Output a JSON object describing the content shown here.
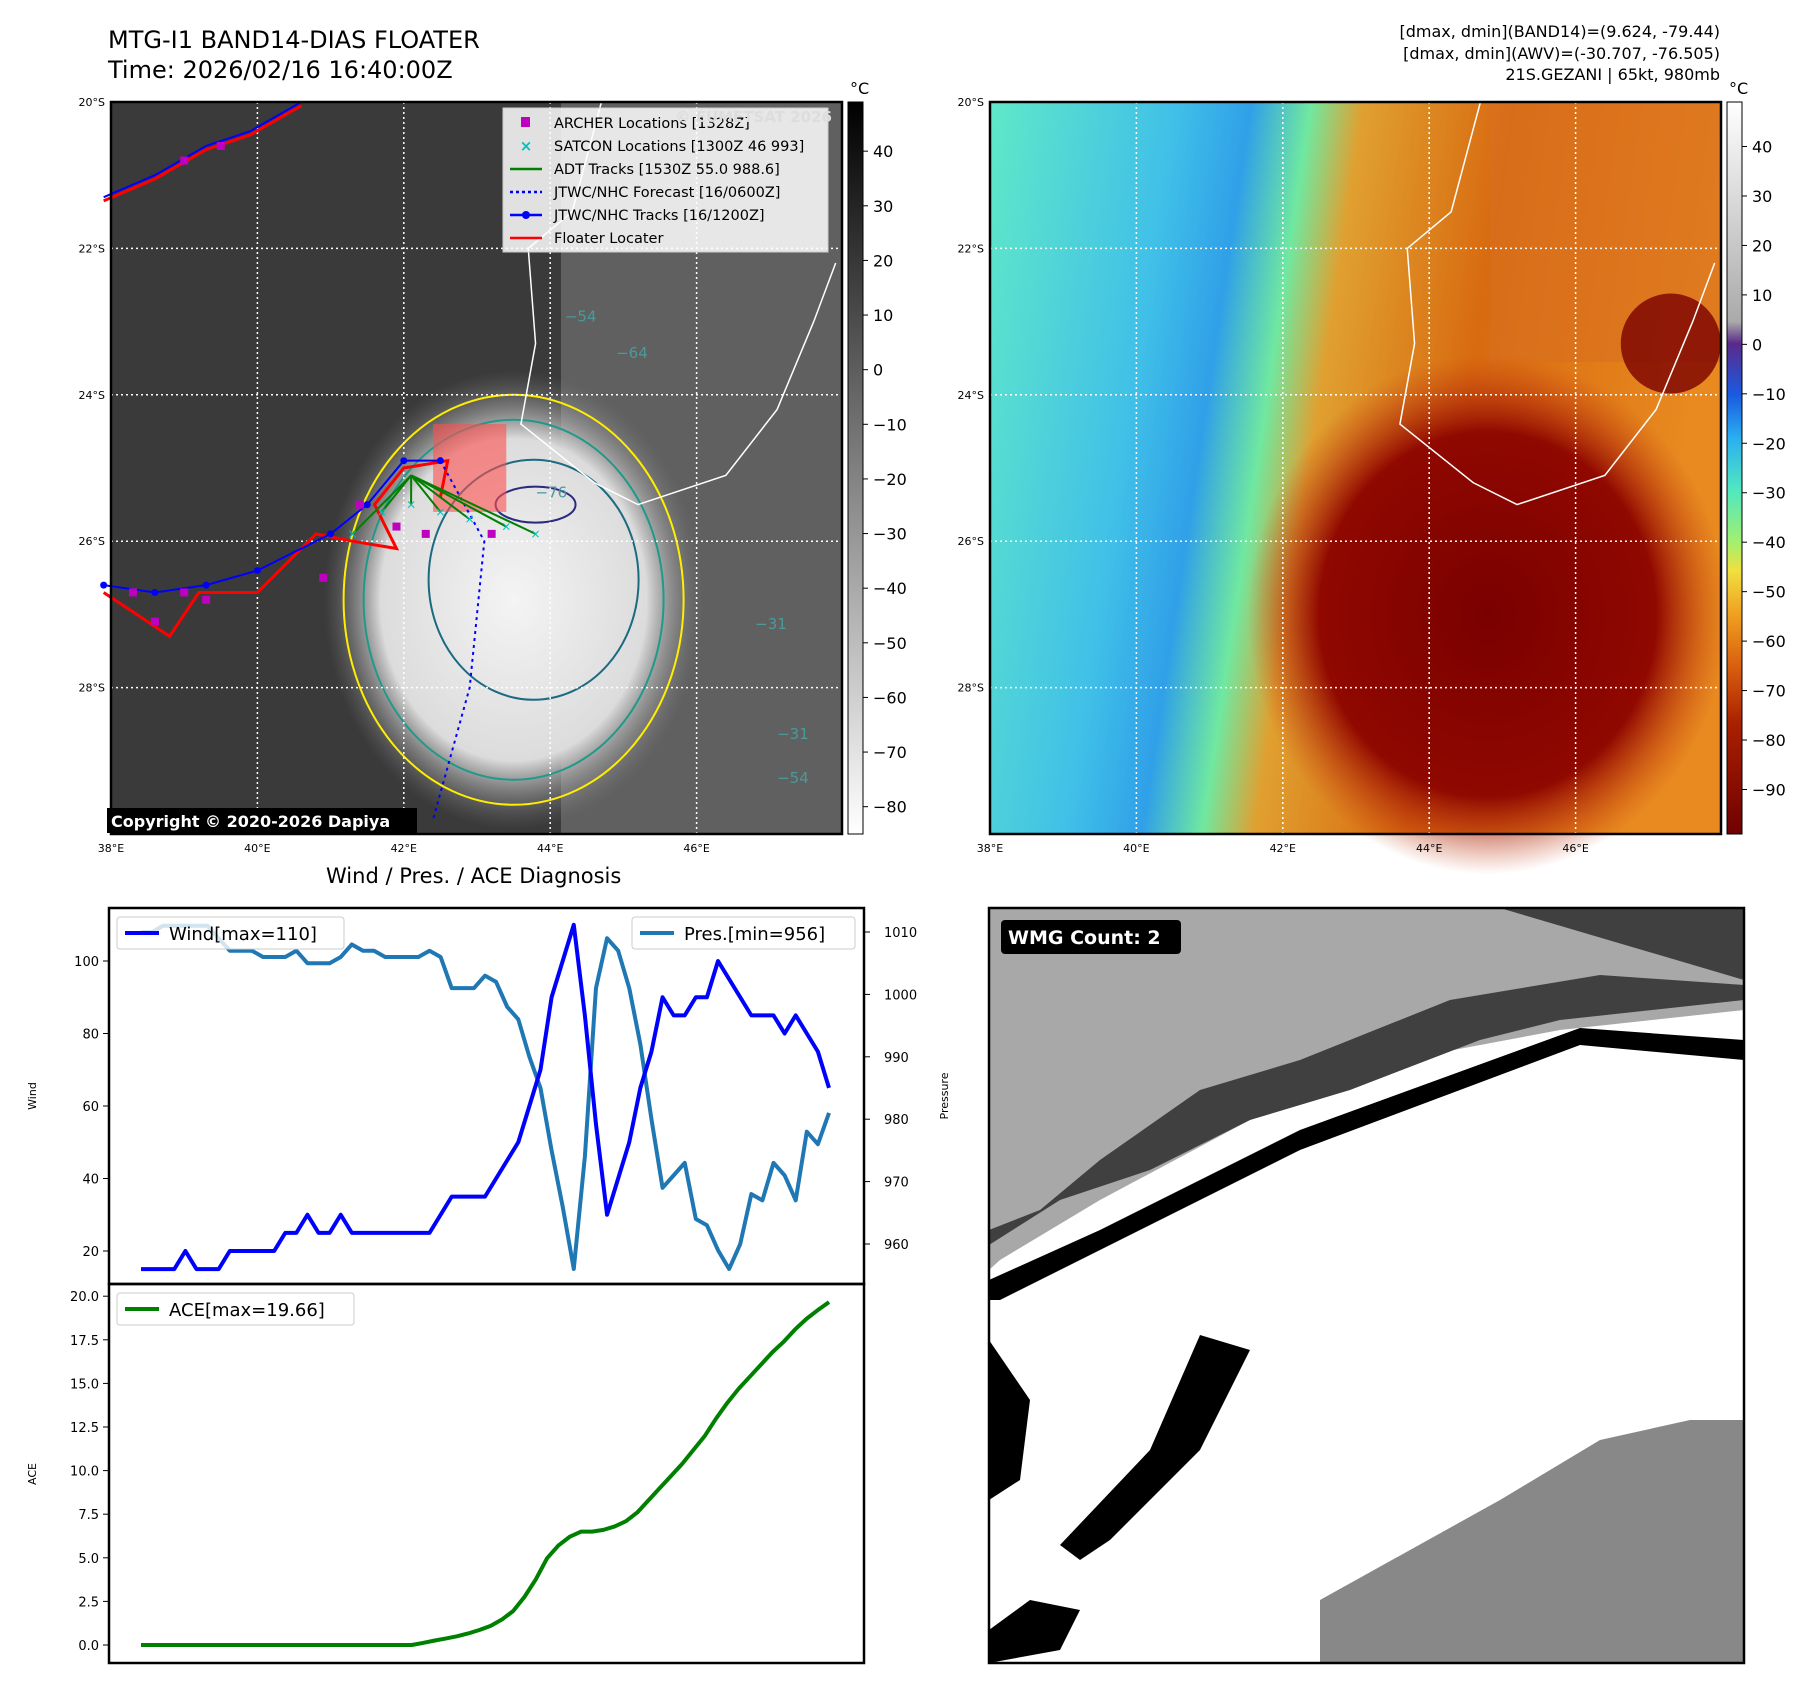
{
  "header": {
    "title": "MTG-I1 BAND14-DIAS FLOATER",
    "time": "Time: 2026/02/16 16:40:00Z",
    "info1": "[dmax, dmin](BAND14)=(9.624, -79.44)",
    "info2": "[dmax, dmin](AWV)=(-30.707, -76.505)",
    "info3": "21S.GEZANI | 65kt, 980mb"
  },
  "maps": {
    "lat_ticks": [
      "20°S",
      "22°S",
      "24°S",
      "26°S",
      "28°S"
    ],
    "lat_values": [
      -20,
      -22,
      -24,
      -26,
      -28
    ],
    "lon_ticks": [
      "38°E",
      "40°E",
      "42°E",
      "44°E",
      "46°E"
    ],
    "lon_values": [
      38,
      40,
      42,
      44,
      46
    ],
    "unit": "°C",
    "copyright": "Copyright © 2020-2026 Dapiya",
    "watermark": "© EUMETSAT 2026",
    "left_cbar": {
      "ticks": [
        "40",
        "30",
        "20",
        "10",
        "0",
        "−10",
        "−20",
        "−30",
        "−40",
        "−50",
        "−60",
        "−70",
        "−80"
      ],
      "values": [
        40,
        30,
        20,
        10,
        0,
        -10,
        -20,
        -30,
        -40,
        -50,
        -60,
        -70,
        -80
      ],
      "range": [
        49,
        -85
      ]
    },
    "right_cbar": {
      "ticks": [
        "40",
        "30",
        "20",
        "10",
        "0",
        "−10",
        "−20",
        "−30",
        "−40",
        "−50",
        "−60",
        "−70",
        "−80",
        "−90"
      ],
      "values": [
        40,
        30,
        20,
        10,
        0,
        -10,
        -20,
        -30,
        -40,
        -50,
        -60,
        -70,
        -80,
        -90
      ],
      "range": [
        49,
        -99
      ]
    },
    "contour_labels": [
      "−54",
      "−76",
      "−31",
      "−64",
      "−31",
      "−54"
    ],
    "legend": [
      "ARCHER Locations [1328Z]",
      "SATCON Locations [1300Z 46 993]",
      "ADT Tracks [1530Z 55.0 988.6]",
      "JTWC/NHC Forecast [16/0600Z]",
      "JTWC/NHC Tracks [16/1200Z]",
      "Floater Locater"
    ],
    "colors": {
      "archer": "#c000c0",
      "satcon": "#00c0c0",
      "adt": "#008000",
      "forecast": "#0000ff",
      "jtwc": "#0000ff",
      "floater": "#ff0000"
    },
    "jtwc_track": [
      [
        37.9,
        -21.3
      ],
      [
        38.6,
        -21
      ],
      [
        39.3,
        -20.6
      ],
      [
        39.9,
        -20.4
      ],
      [
        40.6,
        -20
      ]
    ],
    "jtwc_track2": [
      [
        37.9,
        -26.6
      ],
      [
        38.6,
        -26.7
      ],
      [
        39.3,
        -26.6
      ],
      [
        40,
        -26.4
      ],
      [
        41,
        -25.9
      ],
      [
        41.5,
        -25.5
      ],
      [
        42,
        -24.9
      ],
      [
        42.5,
        -24.9
      ]
    ],
    "floater_track2": [
      [
        37.9,
        -26.7
      ],
      [
        38.8,
        -27.3
      ],
      [
        39.2,
        -26.7
      ],
      [
        40,
        -26.7
      ],
      [
        40.8,
        -25.9
      ],
      [
        41.3,
        -26
      ],
      [
        41.9,
        -26.1
      ],
      [
        41.6,
        -25.5
      ],
      [
        42,
        -25
      ],
      [
        42.6,
        -24.9
      ],
      [
        42.5,
        -25.4
      ]
    ],
    "forecast_track": [
      [
        42.5,
        -24.9
      ],
      [
        43.1,
        -26
      ],
      [
        42.9,
        -28
      ],
      [
        42.4,
        -29.8
      ]
    ],
    "adt_points": [
      [
        41.3,
        -25.9
      ],
      [
        41.7,
        -25.6
      ],
      [
        42.1,
        -25.5
      ],
      [
        42.5,
        -25.6
      ],
      [
        42.9,
        -25.7
      ],
      [
        43.4,
        -25.8
      ],
      [
        43.8,
        -25.9
      ]
    ],
    "archer_points": [
      [
        38.3,
        -26.7
      ],
      [
        38.6,
        -27.1
      ],
      [
        39,
        -26.7
      ],
      [
        39.3,
        -26.8
      ],
      [
        40.9,
        -26.5
      ],
      [
        41.4,
        -25.5
      ],
      [
        41.9,
        -25.8
      ],
      [
        42.3,
        -25.9
      ],
      [
        43.2,
        -25.9
      ],
      [
        39,
        -20.8
      ],
      [
        39.5,
        -20.6
      ]
    ],
    "storm_center": [
      43.5,
      -26.8
    ]
  },
  "timeseries": {
    "title": "Wind / Pres. / ACE Diagnosis",
    "wind_label": "Wind",
    "pres_label": "Pressure",
    "ace_label": "ACE",
    "wind_legend": "Wind[max=110]",
    "pres_legend": "Pres.[min=956]",
    "ace_legend": "ACE[max=19.66]",
    "wind_ticks": [
      20,
      40,
      60,
      80,
      100
    ],
    "pres_ticks": [
      960,
      970,
      980,
      990,
      1000,
      1010
    ],
    "ace_ticks": [
      "0.0",
      "2.5",
      "5.0",
      "7.5",
      "10.0",
      "12.5",
      "15.0",
      "17.5",
      "20.0"
    ],
    "colors": {
      "wind": "#0000ff",
      "pres": "#1f77b4",
      "ace": "#008000"
    }
  },
  "chart_data": [
    {
      "type": "line",
      "title": "Wind / Pres. / ACE Diagnosis",
      "ylabel": "Wind",
      "y2label": "Pressure",
      "ylim": [
        10,
        113
      ],
      "y2lim": [
        953,
        1013
      ],
      "series": [
        {
          "name": "Wind[max=110]",
          "values": [
            15,
            15,
            15,
            15,
            20,
            15,
            15,
            15,
            20,
            20,
            20,
            20,
            20,
            25,
            25,
            30,
            25,
            25,
            30,
            25,
            25,
            25,
            25,
            25,
            25,
            25,
            25,
            30,
            35,
            35,
            35,
            35,
            40,
            45,
            50,
            60,
            70,
            90,
            100,
            110,
            85,
            55,
            30,
            40,
            50,
            65,
            75,
            90,
            85,
            85,
            90,
            90,
            100,
            95,
            90,
            85,
            85,
            85,
            80,
            85,
            80,
            75,
            65
          ]
        },
        {
          "name": "Pres.[min=956]",
          "axis": "right",
          "values": [
            1010,
            1010,
            1011,
            1011,
            1011,
            1011,
            1011,
            1009,
            1007,
            1007,
            1007,
            1006,
            1006,
            1006,
            1007,
            1005,
            1005,
            1005,
            1006,
            1008,
            1007,
            1007,
            1006,
            1006,
            1006,
            1006,
            1007,
            1006,
            1001,
            1001,
            1001,
            1003,
            1002,
            998,
            996,
            990,
            985,
            975,
            966,
            956,
            974,
            1001,
            1009,
            1007,
            1001,
            992,
            980,
            969,
            971,
            973,
            964,
            963,
            959,
            956,
            960,
            968,
            967,
            973,
            971,
            967,
            978,
            976,
            981
          ]
        }
      ]
    },
    {
      "type": "line",
      "ylabel": "ACE",
      "ylim": [
        -0.8,
        20.7
      ],
      "series": [
        {
          "name": "ACE[max=19.66]",
          "values": [
            0,
            0,
            0,
            0,
            0,
            0,
            0,
            0,
            0,
            0,
            0,
            0,
            0,
            0,
            0,
            0,
            0,
            0,
            0,
            0,
            0,
            0,
            0,
            0,
            0,
            0.12,
            0.25,
            0.37,
            0.5,
            0.66,
            0.86,
            1.1,
            1.46,
            1.95,
            2.76,
            3.76,
            4.97,
            5.7,
            6.2,
            6.5,
            6.5,
            6.6,
            6.8,
            7.1,
            7.6,
            8.3,
            9.0,
            9.7,
            10.4,
            11.2,
            12.0,
            13.0,
            13.9,
            14.7,
            15.4,
            16.1,
            16.8,
            17.4,
            18.1,
            18.7,
            19.2,
            19.66
          ]
        }
      ]
    }
  ],
  "wmg": {
    "label": "WMG Count: 2"
  }
}
